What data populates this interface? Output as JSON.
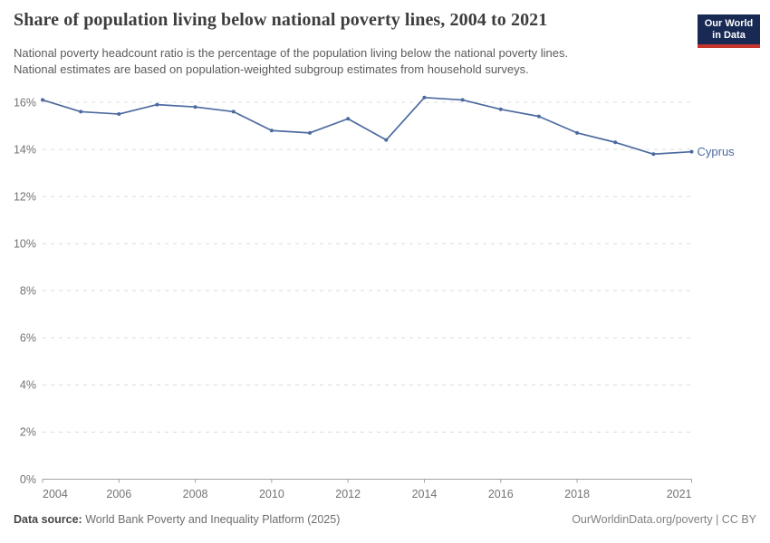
{
  "header": {
    "title": "Share of population living below national poverty lines, 2004 to 2021",
    "subtitle_lines": [
      "National poverty headcount ratio is the percentage of the population living below the national poverty lines.",
      "National estimates are based on population-weighted subgroup estimates from household surveys."
    ]
  },
  "logo": {
    "line1": "Our World",
    "line2": "in Data",
    "bg_color": "#182a54",
    "bar_color": "#c5352c"
  },
  "chart_data": {
    "type": "line",
    "title": "Share of population living below national poverty lines, 2004 to 2021",
    "x": [
      2004,
      2005,
      2006,
      2007,
      2008,
      2009,
      2010,
      2011,
      2012,
      2013,
      2014,
      2015,
      2016,
      2017,
      2018,
      2019,
      2020,
      2021
    ],
    "series": [
      {
        "name": "Cyprus",
        "color": "#4c6aa0",
        "values": [
          16.1,
          15.6,
          15.5,
          15.9,
          15.8,
          15.6,
          14.8,
          14.7,
          15.3,
          14.4,
          16.2,
          16.1,
          15.7,
          15.4,
          14.7,
          14.3,
          13.8,
          13.9
        ]
      }
    ],
    "end_label": "Cyprus",
    "x_tick_labels": [
      2004,
      2006,
      2008,
      2010,
      2012,
      2014,
      2016,
      2018,
      2021
    ],
    "y_ticks": [
      0,
      2,
      4,
      6,
      8,
      10,
      12,
      14,
      16
    ],
    "y_tick_suffix": "%",
    "xlim": [
      2004,
      2021
    ],
    "ylim": [
      0,
      16
    ],
    "grid": "horizontal-dashed",
    "legend": "end-of-line-label",
    "grid_color": "#dcdcdc",
    "axis_color": "#a3a3a3",
    "tick_label_color": "#737373"
  },
  "footer": {
    "data_source_label": "Data source:",
    "data_source_text": " World Bank Poverty and Inequality Platform (2025)",
    "right_text": "OurWorldinData.org/poverty | CC BY"
  }
}
